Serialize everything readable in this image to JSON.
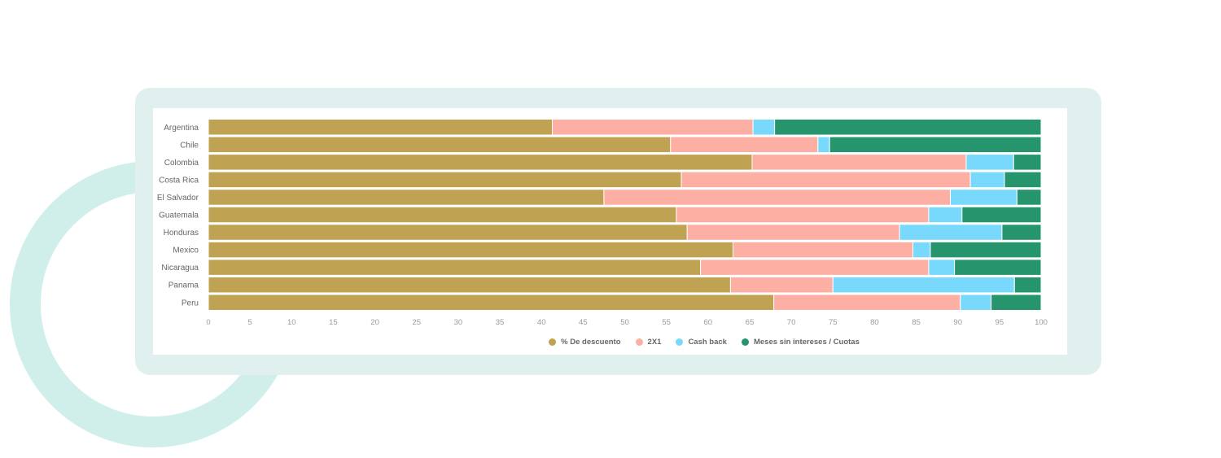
{
  "chart_data": {
    "type": "bar",
    "orientation": "horizontal",
    "stacked": true,
    "title": "",
    "xlabel": "",
    "ylabel": "",
    "xlim": [
      0,
      100
    ],
    "x_ticks": [
      "0",
      "5",
      "10",
      "15",
      "20",
      "25",
      "30",
      "35",
      "40",
      "45",
      "50",
      "55",
      "60",
      "65",
      "70",
      "75",
      "80",
      "85",
      "90",
      "95",
      "100"
    ],
    "categories": [
      "Argentina",
      "Chile",
      "Colombia",
      "Costa Rica",
      "El Salvador",
      "Guatemala",
      "Honduras",
      "Mexico",
      "Nicaragua",
      "Panama",
      "Peru"
    ],
    "series": [
      {
        "name": "% De descuento",
        "color": "#c0a352",
        "values": [
          41.3,
          55.5,
          65.3,
          56.8,
          47.5,
          56.2,
          57.5,
          63.0,
          59.1,
          62.7,
          67.9
        ]
      },
      {
        "name": "2X1",
        "color": "#fdafa3",
        "values": [
          24.1,
          17.7,
          25.7,
          34.7,
          41.6,
          30.3,
          25.5,
          21.6,
          27.4,
          12.3,
          22.4
        ]
      },
      {
        "name": "Cash back",
        "color": "#79d9fd",
        "values": [
          2.6,
          1.4,
          5.7,
          4.1,
          8.0,
          4.0,
          12.3,
          2.1,
          3.1,
          21.8,
          3.7
        ]
      },
      {
        "name": "Meses sin intereses / Cuotas",
        "color": "#26946d",
        "values": [
          32.0,
          25.4,
          3.3,
          4.4,
          2.9,
          9.5,
          4.7,
          13.3,
          10.4,
          3.2,
          6.0
        ]
      }
    ],
    "grid": false,
    "legend_position": "bottom-center"
  },
  "decor": {
    "ring_color": "#d0efea",
    "frame_color": "#e0f0ee"
  }
}
